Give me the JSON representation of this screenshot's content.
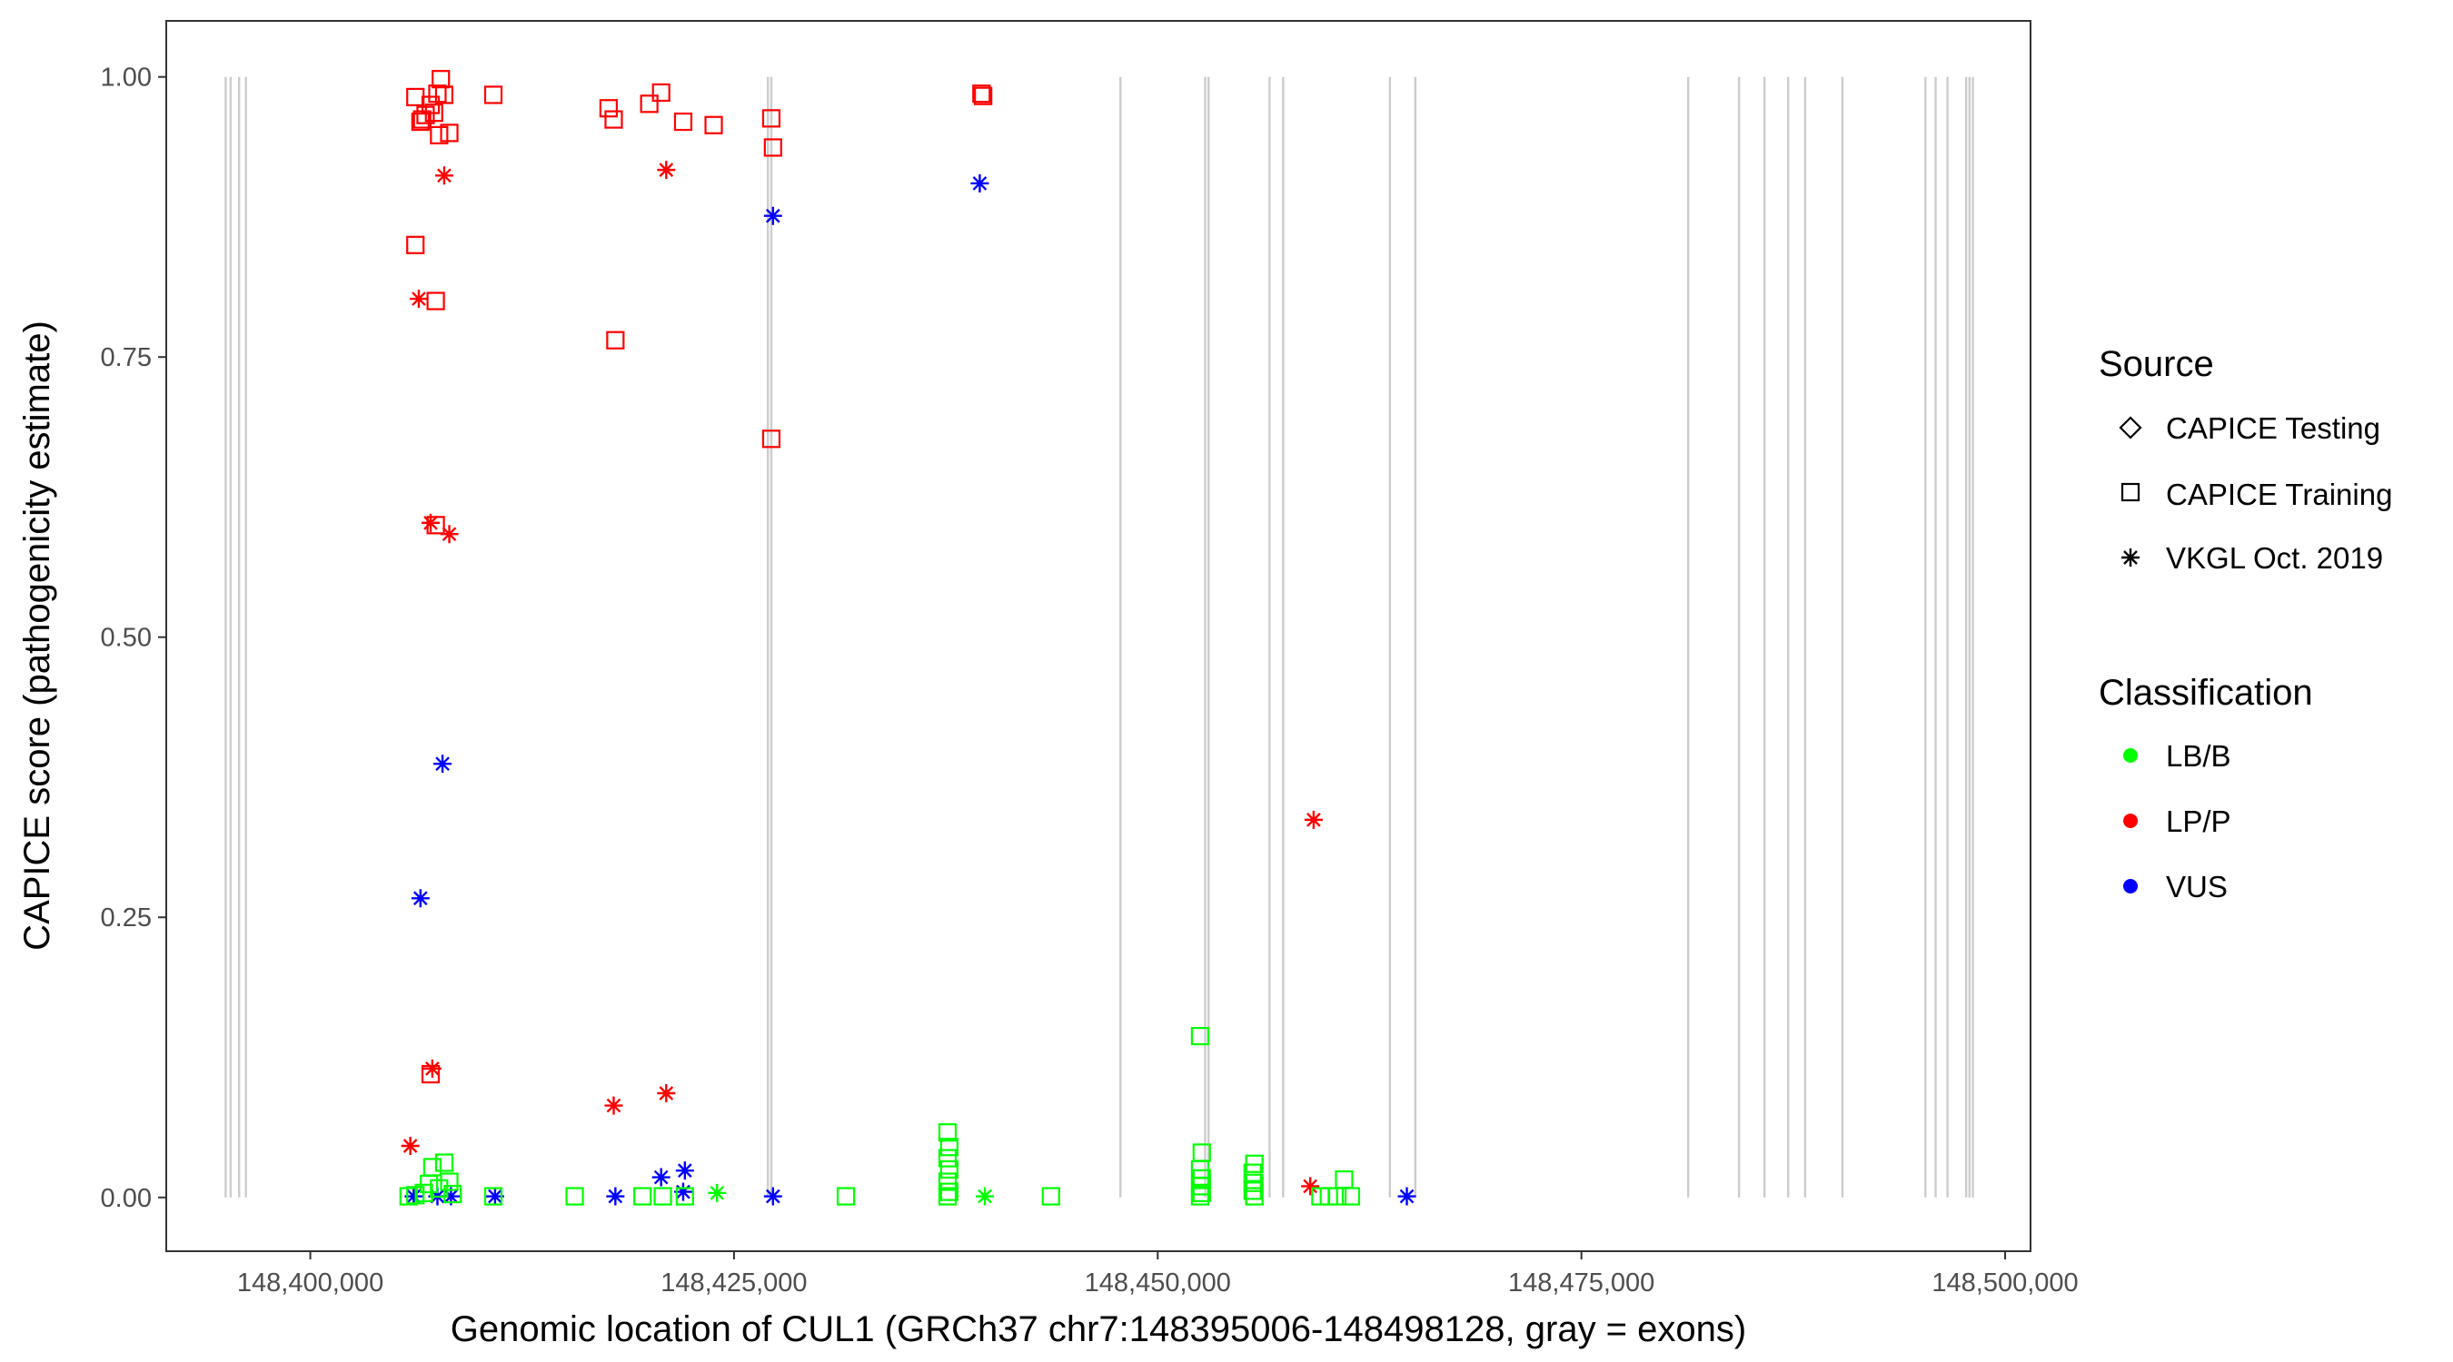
{
  "chart_data": {
    "type": "scatter",
    "xlabel": "Genomic location of CUL1 (GRCh37 chr7:148395006-148498128, gray = exons)",
    "ylabel": "CAPICE score (pathogenicity estimate)",
    "xlim": [
      148391500,
      148501500
    ],
    "ylim": [
      -0.048,
      1.05
    ],
    "x_ticks": [
      148400000,
      148425000,
      148450000,
      148475000,
      148500000
    ],
    "x_tick_labels": [
      "148,400,000",
      "148,425,000",
      "148,450,000",
      "148,475,000",
      "148,500,000"
    ],
    "y_ticks": [
      0,
      0.25,
      0.5,
      0.75,
      1.0
    ],
    "y_tick_labels": [
      "0.00",
      "0.25",
      "0.50",
      "0.75",
      "1.00"
    ],
    "grid": false,
    "exons": [
      148395006,
      148395300,
      148395800,
      148396200,
      148427000,
      148427200,
      148447800,
      148452800,
      148453000,
      148456600,
      148457400,
      148463700,
      148465200,
      148481300,
      148484300,
      148485800,
      148487200,
      148488200,
      148490400,
      148495300,
      148495900,
      148496600,
      148497700,
      148497900,
      148498100
    ],
    "legend_source": {
      "title": "Source",
      "entries": [
        {
          "label": "CAPICE Testing",
          "shape": "diamond"
        },
        {
          "label": "CAPICE Training",
          "shape": "square"
        },
        {
          "label": "VKGL Oct. 2019",
          "shape": "asterisk"
        }
      ]
    },
    "legend_class": {
      "title": "Classification",
      "entries": [
        {
          "label": "LB/B",
          "color": "#00ff00"
        },
        {
          "label": "LP/P",
          "color": "#ff0000"
        },
        {
          "label": "VUS",
          "color": "#0000ff"
        }
      ]
    },
    "colors": {
      "LB/B": "#00ff00",
      "LP/P": "#ff0000",
      "VUS": "#0000ff",
      "exon": "#cccccc"
    },
    "series": [
      {
        "source": "CAPICE Training",
        "classification": "LP/P",
        "points": [
          [
            148406200,
            0.982
          ],
          [
            148406500,
            0.96
          ],
          [
            148406800,
            0.966
          ],
          [
            148407100,
            0.975
          ],
          [
            148407300,
            0.968
          ],
          [
            148407500,
            0.985
          ],
          [
            148407700,
            0.998
          ],
          [
            148407900,
            0.984
          ],
          [
            148407600,
            0.948
          ],
          [
            148408200,
            0.95
          ],
          [
            148406600,
            0.962
          ],
          [
            148410800,
            0.984
          ],
          [
            148417600,
            0.972
          ],
          [
            148417900,
            0.962
          ],
          [
            148420000,
            0.976
          ],
          [
            148420700,
            0.986
          ],
          [
            148422000,
            0.96
          ],
          [
            148423800,
            0.957
          ],
          [
            148427200,
            0.963
          ],
          [
            148427300,
            0.937
          ],
          [
            148427200,
            0.677
          ],
          [
            148406200,
            0.85
          ],
          [
            148407400,
            0.8
          ],
          [
            148418000,
            0.765
          ],
          [
            148407400,
            0.6
          ],
          [
            148407100,
            0.11
          ],
          [
            148439600,
            0.985
          ],
          [
            148439700,
            0.983
          ]
        ]
      },
      {
        "source": "VKGL Oct. 2019",
        "classification": "LP/P",
        "points": [
          [
            148407900,
            0.912
          ],
          [
            148421000,
            0.917
          ],
          [
            148406400,
            0.802
          ],
          [
            148407100,
            0.602
          ],
          [
            148408200,
            0.592
          ],
          [
            148407200,
            0.115
          ],
          [
            148405900,
            0.046
          ],
          [
            148417900,
            0.082
          ],
          [
            148421000,
            0.093
          ],
          [
            148459200,
            0.337
          ],
          [
            148459000,
            0.01
          ]
        ]
      },
      {
        "source": "VKGL Oct. 2019",
        "classification": "VUS",
        "points": [
          [
            148427300,
            0.876
          ],
          [
            148439500,
            0.905
          ],
          [
            148407800,
            0.387
          ],
          [
            148406500,
            0.267
          ],
          [
            148420700,
            0.018
          ],
          [
            148422100,
            0.024
          ],
          [
            148406100,
            0.001
          ],
          [
            148407500,
            0.001
          ],
          [
            148408300,
            0.001
          ],
          [
            148410900,
            0.001
          ],
          [
            148418000,
            0.001
          ],
          [
            148422000,
            0.005
          ],
          [
            148427300,
            0.001
          ],
          [
            148464700,
            0.001
          ]
        ]
      },
      {
        "source": "VKGL Oct. 2019",
        "classification": "LB/B",
        "points": [
          [
            148424000,
            0.004
          ],
          [
            148439800,
            0.001
          ]
        ]
      },
      {
        "source": "CAPICE Training",
        "classification": "LB/B",
        "points": [
          [
            148405800,
            0.001
          ],
          [
            148406200,
            0.002
          ],
          [
            148406700,
            0.004
          ],
          [
            148407000,
            0.012
          ],
          [
            148407200,
            0.027
          ],
          [
            148407600,
            0.008
          ],
          [
            148407900,
            0.031
          ],
          [
            148408200,
            0.014
          ],
          [
            148408400,
            0.003
          ],
          [
            148410800,
            0.001
          ],
          [
            148415600,
            0.001
          ],
          [
            148419600,
            0.001
          ],
          [
            148420800,
            0.001
          ],
          [
            148422100,
            0.001
          ],
          [
            148431600,
            0.001
          ],
          [
            148437600,
            0.058
          ],
          [
            148437700,
            0.045
          ],
          [
            148437600,
            0.035
          ],
          [
            148437700,
            0.025
          ],
          [
            148437600,
            0.014
          ],
          [
            148437700,
            0.005
          ],
          [
            148437600,
            0.001
          ],
          [
            148443700,
            0.001
          ],
          [
            148452500,
            0.144
          ],
          [
            148452600,
            0.04
          ],
          [
            148452500,
            0.025
          ],
          [
            148452600,
            0.017
          ],
          [
            148452500,
            0.01
          ],
          [
            148452600,
            0.004
          ],
          [
            148452500,
            0.001
          ],
          [
            148455700,
            0.03
          ],
          [
            148455600,
            0.022
          ],
          [
            148455700,
            0.013
          ],
          [
            148455600,
            0.006
          ],
          [
            148455700,
            0.001
          ],
          [
            148459600,
            0.001
          ],
          [
            148460100,
            0.001
          ],
          [
            148460600,
            0.001
          ],
          [
            148461000,
            0.016
          ],
          [
            148461400,
            0.001
          ]
        ]
      }
    ]
  }
}
